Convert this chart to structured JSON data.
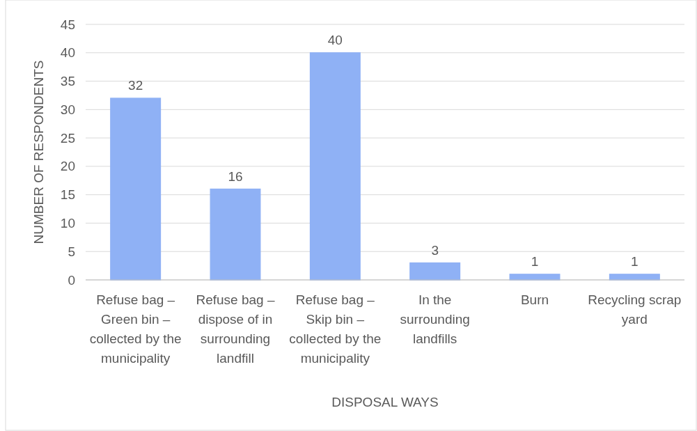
{
  "chart_data": {
    "type": "bar",
    "xlabel": "DISPOSAL WAYS",
    "ylabel": "NUMBER OF RESPONDENTS",
    "categories": [
      "Refuse bag – Green bin – collected by the municipality",
      "Refuse bag – dispose of in surrounding landfill",
      "Refuse bag – Skip bin – collected by the municipality",
      "In the surrounding landfills",
      "Burn",
      "Recycling scrap yard"
    ],
    "values": [
      32,
      16,
      40,
      3,
      1,
      1
    ],
    "color": "#8fb1f5",
    "ylim": [
      0,
      45
    ],
    "yticks": [
      0,
      5,
      10,
      15,
      20,
      25,
      30,
      35,
      40,
      45
    ],
    "grid": "y",
    "data_labels": true
  }
}
